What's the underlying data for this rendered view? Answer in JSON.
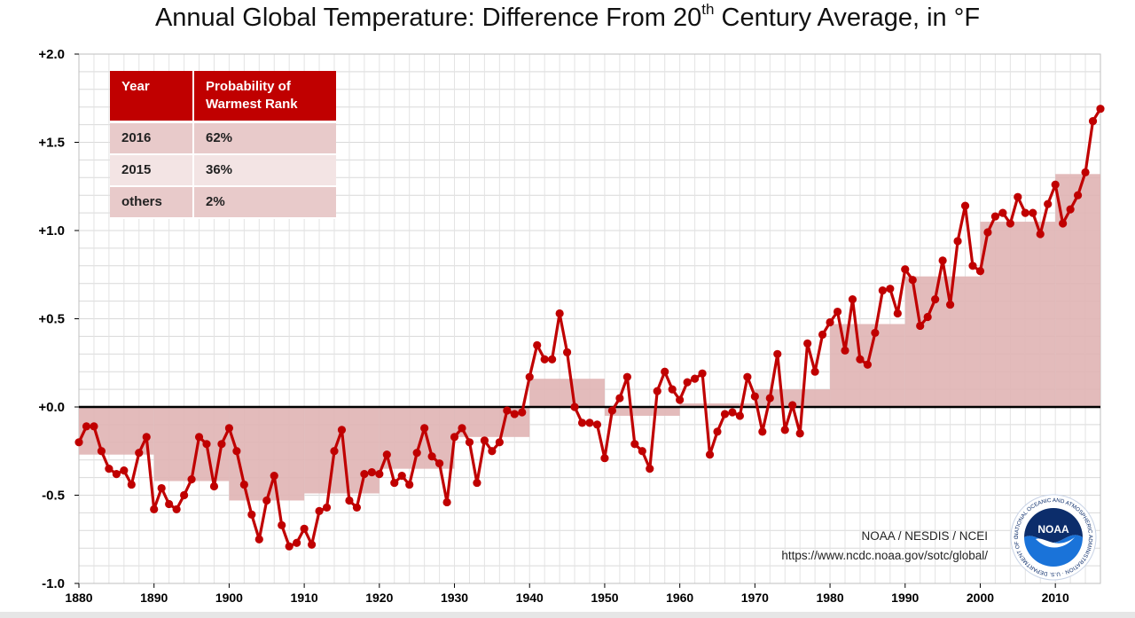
{
  "title": {
    "prefix": "Annual Global Temperature: Difference From 20",
    "sup": "th",
    "suffix": " Century Average, in °F"
  },
  "table": {
    "headers": [
      "Year",
      "Probability of Warmest Rank"
    ],
    "rows": [
      {
        "year": "2016",
        "probability": "62%"
      },
      {
        "year": "2015",
        "probability": "36%"
      },
      {
        "year": "others",
        "probability": "2%"
      }
    ]
  },
  "credit": {
    "line1": "NOAA / NESDIS / NCEI",
    "line2": "https://www.ncdc.noaa.gov/sotc/global/"
  },
  "logo": {
    "text": "NOAA",
    "ring_text": "NATIONAL OCEANIC AND ATMOSPHERIC ADMINISTRATION · U.S. DEPARTMENT OF COMMERCE"
  },
  "colors": {
    "line": "#c00000",
    "bars": "#e0b4b4",
    "header": "#c00000",
    "logo_blue": "#1a5fb4",
    "logo_navy": "#0c2d6b"
  },
  "chart_data": {
    "type": "line",
    "title": "Annual Global Temperature: Difference From 20th Century Average, in °F",
    "xlabel": "",
    "ylabel": "",
    "xlim": [
      1880,
      2016
    ],
    "ylim": [
      -1.0,
      2.0
    ],
    "x_ticks": [
      1880,
      1890,
      1900,
      1910,
      1920,
      1930,
      1940,
      1950,
      1960,
      1970,
      1980,
      1990,
      2000,
      2010
    ],
    "y_ticks": [
      {
        "value": -1.0,
        "label": "-1.0"
      },
      {
        "value": -0.5,
        "label": "-0.5"
      },
      {
        "value": 0.0,
        "label": "+0.0"
      },
      {
        "value": 0.5,
        "label": "+0.5"
      },
      {
        "value": 1.0,
        "label": "+1.0"
      },
      {
        "value": 1.5,
        "label": "+1.5"
      },
      {
        "value": 2.0,
        "label": "+2.0"
      }
    ],
    "grid": true,
    "series": [
      {
        "x_start": 1880,
        "values": [
          -0.2,
          -0.11,
          -0.11,
          -0.25,
          -0.35,
          -0.38,
          -0.36,
          -0.44,
          -0.26,
          -0.17,
          -0.58,
          -0.46,
          -0.55,
          -0.58,
          -0.5,
          -0.41,
          -0.17,
          -0.21,
          -0.45,
          -0.21,
          -0.12,
          -0.25,
          -0.44,
          -0.61,
          -0.75,
          -0.53,
          -0.39,
          -0.67,
          -0.79,
          -0.77,
          -0.69,
          -0.78,
          -0.59,
          -0.57,
          -0.25,
          -0.13,
          -0.53,
          -0.57,
          -0.38,
          -0.37,
          -0.38,
          -0.27,
          -0.43,
          -0.39,
          -0.44,
          -0.26,
          -0.12,
          -0.28,
          -0.32,
          -0.54,
          -0.17,
          -0.12,
          -0.2,
          -0.43,
          -0.19,
          -0.25,
          -0.2,
          -0.02,
          -0.04,
          -0.03,
          0.17,
          0.35,
          0.27,
          0.27,
          0.53,
          0.31,
          0.0,
          -0.09,
          -0.09,
          -0.1,
          -0.29,
          -0.02,
          0.05,
          0.17,
          -0.21,
          -0.25,
          -0.35,
          0.09,
          0.2,
          0.1,
          0.04,
          0.14,
          0.16,
          0.19,
          -0.27,
          -0.14,
          -0.04,
          -0.03,
          -0.05,
          0.17,
          0.06,
          -0.14,
          0.05,
          0.3,
          -0.13,
          0.01,
          -0.15,
          0.36,
          0.2,
          0.41,
          0.48,
          0.54,
          0.32,
          0.61,
          0.27,
          0.24,
          0.42,
          0.66,
          0.67,
          0.53,
          0.78,
          0.72,
          0.46,
          0.51,
          0.61,
          0.83,
          0.58,
          0.94,
          1.14,
          0.8,
          0.77,
          0.99,
          1.08,
          1.1,
          1.04,
          1.19,
          1.1,
          1.1,
          0.98,
          1.15,
          1.26,
          1.04,
          1.12,
          1.2,
          1.33,
          1.62,
          1.69
        ]
      }
    ],
    "decadal_averages": [
      {
        "start": 1880,
        "end": 1890,
        "value": -0.27
      },
      {
        "start": 1890,
        "end": 1900,
        "value": -0.42
      },
      {
        "start": 1900,
        "end": 1910,
        "value": -0.53
      },
      {
        "start": 1910,
        "end": 1920,
        "value": -0.49
      },
      {
        "start": 1920,
        "end": 1930,
        "value": -0.35
      },
      {
        "start": 1930,
        "end": 1940,
        "value": -0.17
      },
      {
        "start": 1940,
        "end": 1950,
        "value": 0.16
      },
      {
        "start": 1950,
        "end": 1960,
        "value": -0.05
      },
      {
        "start": 1960,
        "end": 1970,
        "value": 0.02
      },
      {
        "start": 1970,
        "end": 1980,
        "value": 0.1
      },
      {
        "start": 1980,
        "end": 1990,
        "value": 0.47
      },
      {
        "start": 1990,
        "end": 2000,
        "value": 0.74
      },
      {
        "start": 2000,
        "end": 2010,
        "value": 1.05
      },
      {
        "start": 2010,
        "end": 2016,
        "value": 1.32
      }
    ]
  }
}
